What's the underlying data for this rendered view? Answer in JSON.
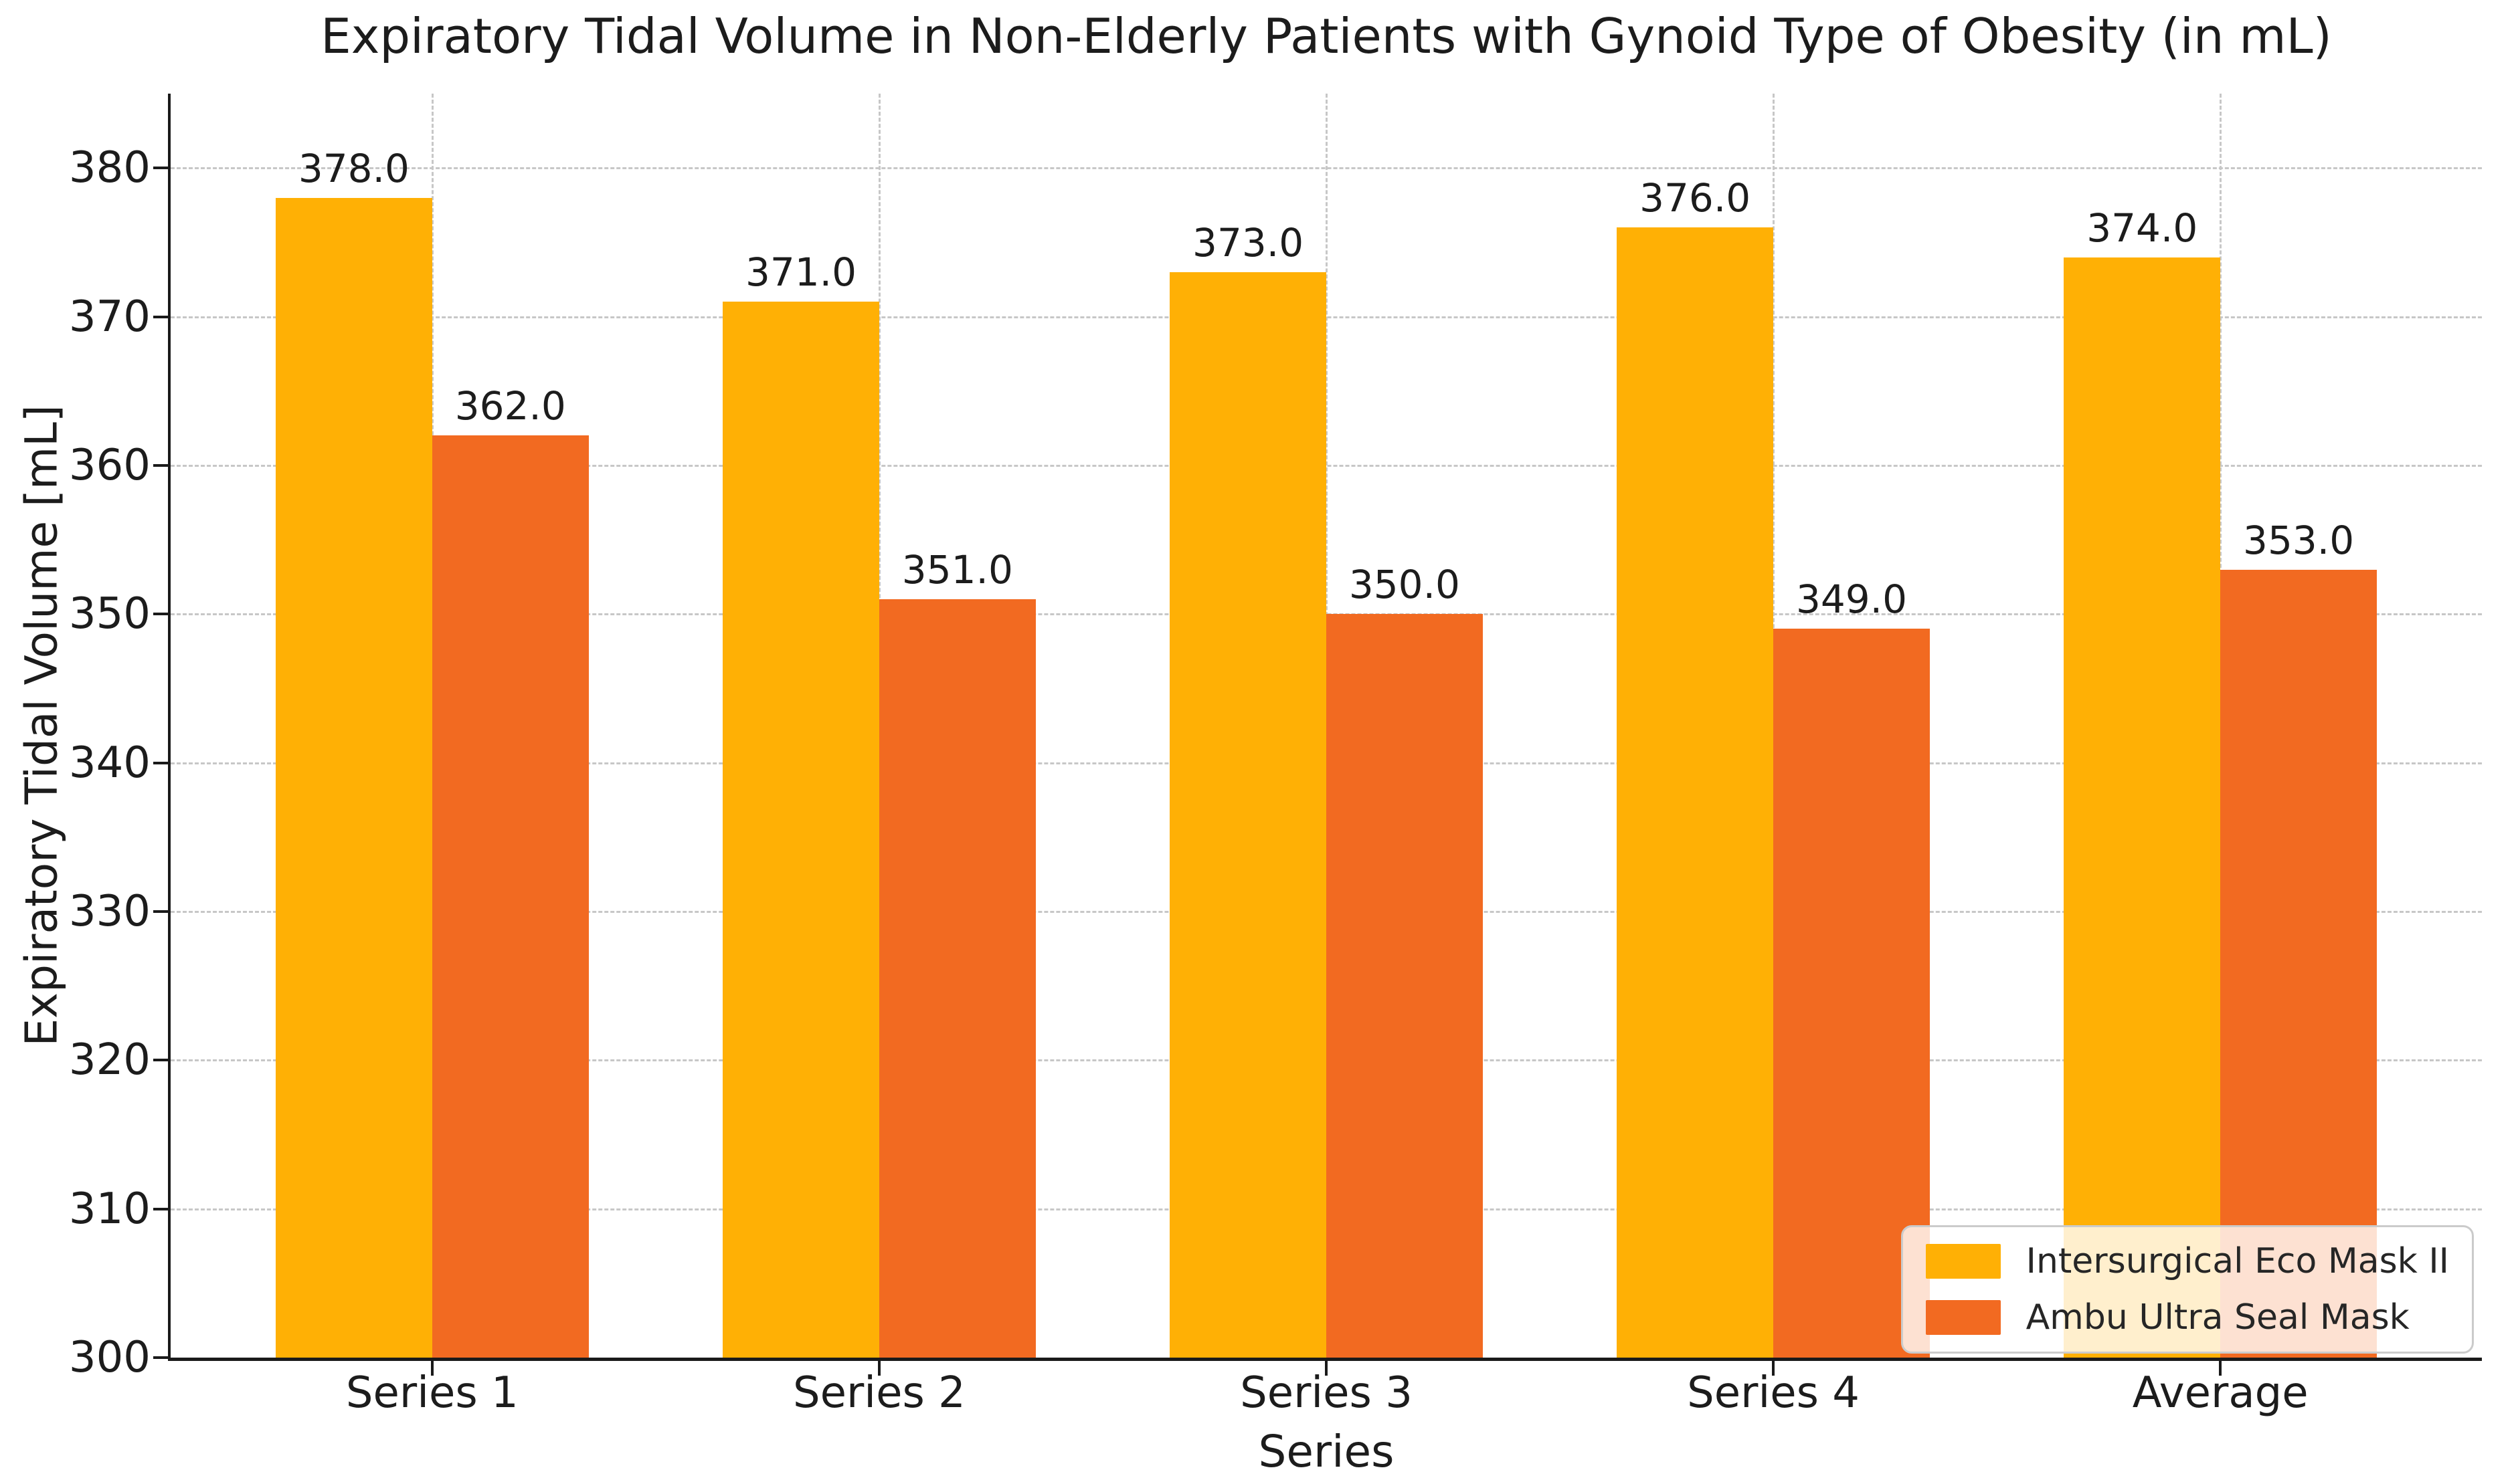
{
  "chart_data": {
    "type": "bar",
    "title": "Expiratory Tidal Volume in Non-Elderly Patients with Gynoid Type of Obesity (in mL)",
    "xlabel": "Series",
    "ylabel": "Expiratory Tidal Volume [mL]",
    "categories": [
      "Series 1",
      "Series 2",
      "Series 3",
      "Series 4",
      "Average"
    ],
    "series": [
      {
        "name": "Intersurgical Eco Mask II",
        "color": "#ffb005",
        "values": [
          378.0,
          371.0,
          373.0,
          376.0,
          374.0
        ]
      },
      {
        "name": "Ambu Ultra Seal Mask",
        "color": "#f26a21",
        "values": [
          362.0,
          351.0,
          350.0,
          349.0,
          353.0
        ]
      }
    ],
    "value_labels": [
      [
        "378.0",
        "371.0",
        "373.0",
        "376.0",
        "374.0"
      ],
      [
        "362.0",
        "351.0",
        "350.0",
        "349.0",
        "353.0"
      ]
    ],
    "ylim": [
      300,
      385
    ],
    "yticks": [
      300,
      310,
      320,
      330,
      340,
      350,
      360,
      370,
      380
    ],
    "grid": "dashed, horizontal at each ytick and vertical at each category center",
    "legend_position": "lower right",
    "bar_width_data_units": 0.35
  }
}
